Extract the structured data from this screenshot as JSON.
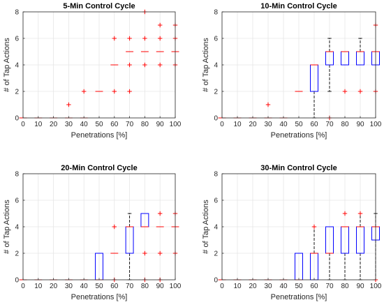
{
  "chart_data": [
    {
      "type": "boxplot",
      "title": "5-Min Control Cycle",
      "xlabel": "Penetrations [%]",
      "ylabel": "# of Tap Actions",
      "xlim": [
        0,
        100
      ],
      "ylim": [
        0,
        8
      ],
      "xticks": [
        "0",
        "10",
        "20",
        "30",
        "40",
        "50",
        "60",
        "70",
        "80",
        "90",
        "100"
      ],
      "yticks": [
        "0",
        "2",
        "4",
        "6",
        "8"
      ],
      "grid": true,
      "boxes": [
        {
          "x": 0,
          "median": 0
        },
        {
          "x": 10,
          "median": 0
        },
        {
          "x": 20,
          "median": 0
        },
        {
          "x": 30,
          "median": 0
        },
        {
          "x": 40,
          "median": 0
        },
        {
          "x": 50,
          "median": 2
        },
        {
          "x": 60,
          "median": 4
        },
        {
          "x": 70,
          "median": 5
        },
        {
          "x": 80,
          "median": 5
        },
        {
          "x": 90,
          "median": 5
        },
        {
          "x": 100,
          "median": 5
        }
      ],
      "outliers": [
        {
          "x": 30,
          "y": 1
        },
        {
          "x": 40,
          "y": 2
        },
        {
          "x": 60,
          "y": 2
        },
        {
          "x": 60,
          "y": 6
        },
        {
          "x": 70,
          "y": 2
        },
        {
          "x": 70,
          "y": 4
        },
        {
          "x": 70,
          "y": 6
        },
        {
          "x": 80,
          "y": 4
        },
        {
          "x": 80,
          "y": 6
        },
        {
          "x": 80,
          "y": 8
        },
        {
          "x": 90,
          "y": 4
        },
        {
          "x": 90,
          "y": 6
        },
        {
          "x": 90,
          "y": 7
        },
        {
          "x": 100,
          "y": 4
        },
        {
          "x": 100,
          "y": 6
        },
        {
          "x": 100,
          "y": 7
        }
      ]
    },
    {
      "type": "boxplot",
      "title": "10-Min Control Cycle",
      "xlabel": "Penetrations [%]",
      "ylabel": "# of Tap Actions",
      "xlim": [
        0,
        100
      ],
      "ylim": [
        0,
        8
      ],
      "xticks": [
        "0",
        "10",
        "20",
        "30",
        "40",
        "50",
        "60",
        "70",
        "80",
        "90",
        "100"
      ],
      "yticks": [
        "0",
        "2",
        "4",
        "6",
        "8"
      ],
      "grid": true,
      "boxes": [
        {
          "x": 0,
          "median": 0
        },
        {
          "x": 10,
          "median": 0
        },
        {
          "x": 20,
          "median": 0
        },
        {
          "x": 30,
          "median": 0
        },
        {
          "x": 40,
          "median": 0
        },
        {
          "x": 50,
          "median": 2
        },
        {
          "x": 60,
          "q1": 2,
          "median": 4,
          "q3": 4,
          "wlo": 0,
          "whi": 4
        },
        {
          "x": 70,
          "q1": 4,
          "median": 5,
          "q3": 5,
          "wlo": 2,
          "whi": 6
        },
        {
          "x": 80,
          "q1": 4,
          "median": 5,
          "q3": 5,
          "wlo": 4,
          "whi": 5
        },
        {
          "x": 90,
          "q1": 4,
          "median": 5,
          "q3": 5,
          "wlo": 4,
          "whi": 6
        },
        {
          "x": 100,
          "q1": 4,
          "median": 5,
          "q3": 5,
          "wlo": 4,
          "whi": 5
        }
      ],
      "outliers": [
        {
          "x": 30,
          "y": 1
        },
        {
          "x": 70,
          "y": 0
        },
        {
          "x": 80,
          "y": 2
        },
        {
          "x": 90,
          "y": 2
        },
        {
          "x": 100,
          "y": 2
        },
        {
          "x": 100,
          "y": 7
        }
      ]
    },
    {
      "type": "boxplot",
      "title": "20-Min Control Cycle",
      "xlabel": "Penetrations [%]",
      "ylabel": "# of Tap Actions",
      "xlim": [
        0,
        100
      ],
      "ylim": [
        0,
        8
      ],
      "xticks": [
        "0",
        "10",
        "20",
        "30",
        "40",
        "50",
        "60",
        "70",
        "80",
        "90",
        "100"
      ],
      "yticks": [
        "0",
        "2",
        "4",
        "6",
        "8"
      ],
      "grid": true,
      "boxes": [
        {
          "x": 0,
          "median": 0
        },
        {
          "x": 10,
          "median": 0
        },
        {
          "x": 20,
          "median": 0
        },
        {
          "x": 30,
          "median": 0
        },
        {
          "x": 40,
          "median": 0
        },
        {
          "x": 50,
          "q1": 0,
          "median": 0,
          "q3": 2,
          "wlo": 0,
          "whi": 2
        },
        {
          "x": 60,
          "median": 2
        },
        {
          "x": 70,
          "q1": 2,
          "median": 4,
          "q3": 4,
          "wlo": 0,
          "whi": 5
        },
        {
          "x": 80,
          "q1": 4,
          "median": 4,
          "q3": 5,
          "wlo": 4,
          "whi": 5
        },
        {
          "x": 90,
          "median": 4
        },
        {
          "x": 100,
          "median": 4
        }
      ],
      "outliers": [
        {
          "x": 60,
          "y": 0
        },
        {
          "x": 60,
          "y": 4
        },
        {
          "x": 80,
          "y": 0
        },
        {
          "x": 80,
          "y": 2
        },
        {
          "x": 90,
          "y": 0
        },
        {
          "x": 90,
          "y": 2
        },
        {
          "x": 90,
          "y": 5
        },
        {
          "x": 100,
          "y": 2
        },
        {
          "x": 100,
          "y": 5
        }
      ]
    },
    {
      "type": "boxplot",
      "title": "30-Min Control Cycle",
      "xlabel": "Penetrations [%]",
      "ylabel": "# of Tap Actions",
      "xlim": [
        0,
        100
      ],
      "ylim": [
        0,
        8
      ],
      "xticks": [
        "0",
        "10",
        "20",
        "30",
        "40",
        "50",
        "60",
        "70",
        "80",
        "90",
        "100"
      ],
      "yticks": [
        "0",
        "2",
        "4",
        "6",
        "8"
      ],
      "grid": true,
      "boxes": [
        {
          "x": 0,
          "median": 0
        },
        {
          "x": 10,
          "median": 0
        },
        {
          "x": 20,
          "median": 0
        },
        {
          "x": 30,
          "median": 0
        },
        {
          "x": 40,
          "median": 0
        },
        {
          "x": 50,
          "q1": 0,
          "median": 0,
          "q3": 2,
          "wlo": 0,
          "whi": 2
        },
        {
          "x": 60,
          "q1": 0,
          "median": 2,
          "q3": 2,
          "wlo": 0,
          "whi": 4
        },
        {
          "x": 70,
          "q1": 2,
          "median": 2,
          "q3": 4,
          "wlo": 0,
          "whi": 4
        },
        {
          "x": 80,
          "q1": 2,
          "median": 4,
          "q3": 4,
          "wlo": 0,
          "whi": 4
        },
        {
          "x": 90,
          "q1": 2,
          "median": 4,
          "q3": 4,
          "wlo": 0,
          "whi": 5
        },
        {
          "x": 100,
          "q1": 3,
          "median": 4,
          "q3": 4,
          "wlo": 0,
          "whi": 5
        }
      ],
      "outliers": [
        {
          "x": 60,
          "y": 4
        },
        {
          "x": 80,
          "y": 5
        },
        {
          "x": 90,
          "y": 5
        },
        {
          "x": 100,
          "y": 0
        }
      ]
    }
  ],
  "colors": {
    "box": "#0000ff",
    "median": "#ff0000",
    "outlier": "#ff0000",
    "whisker": "#000000",
    "grid": "#e6e6e6",
    "axis": "#262626"
  }
}
